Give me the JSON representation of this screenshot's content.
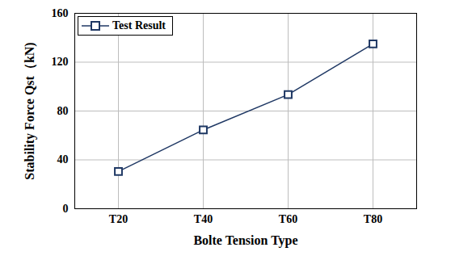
{
  "chart_data": {
    "type": "line",
    "x_label": "Bolte Tension Type",
    "y_label": "Stability Force Qst（kN)",
    "categories": [
      "T20",
      "T40",
      "T60",
      "T80"
    ],
    "series": [
      {
        "name": "Test Result",
        "color": "#1f3864",
        "values": [
          30.5,
          64.5,
          93.5,
          135
        ],
        "marker": "square"
      }
    ],
    "ylim": [
      0,
      160
    ],
    "yticks": [
      0,
      40,
      80,
      120,
      160
    ],
    "grid": true,
    "legend": "upper left"
  }
}
